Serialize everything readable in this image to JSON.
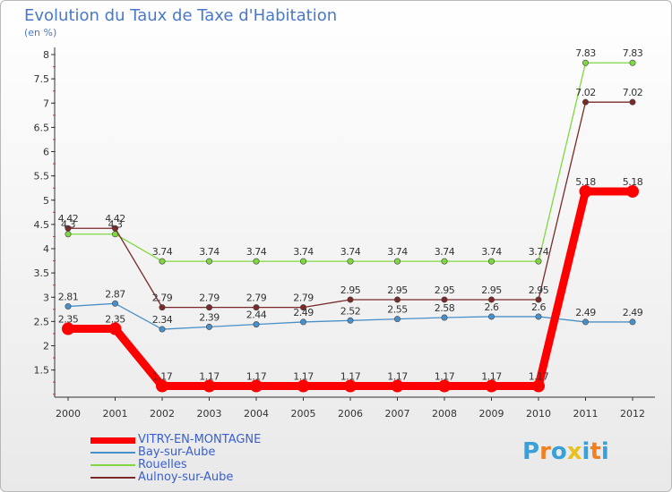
{
  "title": "Evolution du Taux de Taxe d'Habitation",
  "subtitle": "(en %)",
  "logo": {
    "text": "Proxiti",
    "colors": [
      "#3aa0d8",
      "#f08020",
      "#3aa0d8",
      "#e8c020",
      "#3aa0d8",
      "#f08020",
      "#3aa0d8"
    ]
  },
  "chart_data": {
    "type": "line",
    "title": "Evolution du Taux de Taxe d'Habitation",
    "ylabel": "(en %)",
    "xlabel": "",
    "x": [
      "2000",
      "2001",
      "2002",
      "2003",
      "2004",
      "2005",
      "2006",
      "2007",
      "2008",
      "2009",
      "2010",
      "2011",
      "2012"
    ],
    "ylim": [
      1,
      8
    ],
    "yticks": [
      "1.5",
      "2",
      "2.5",
      "3",
      "3.5",
      "4",
      "4.5",
      "5",
      "5.5",
      "6",
      "6.5",
      "7",
      "7.5",
      "8"
    ],
    "grid": false,
    "legend_position": "bottom-left",
    "series": [
      {
        "name": "VITRY-EN-MONTAGNE",
        "color": "#ff0000",
        "values": [
          2.35,
          2.35,
          1.17,
          1.17,
          1.17,
          1.17,
          1.17,
          1.17,
          1.17,
          1.17,
          1.17,
          5.18,
          5.18
        ],
        "labels": [
          "2.35",
          "2.35",
          "1.17",
          "1.17",
          "1.17",
          "1.17",
          "1.17",
          "1.17",
          "1.17",
          "1.17",
          "1.17",
          "5.18",
          "5.18"
        ]
      },
      {
        "name": "Bay-sur-Aube",
        "color": "#4a90c8",
        "values": [
          2.81,
          2.87,
          2.34,
          2.39,
          2.44,
          2.49,
          2.52,
          2.55,
          2.58,
          2.6,
          2.6,
          2.49,
          2.49
        ],
        "labels": [
          "2.81",
          "2.87",
          "2.34",
          "2.39",
          "2.44",
          "2.49",
          "2.52",
          "2.55",
          "2.58",
          "2.6",
          "2.6",
          "2.49",
          "2.49"
        ]
      },
      {
        "name": "Rouelles",
        "color": "#80d840",
        "values": [
          4.3,
          4.3,
          3.74,
          3.74,
          3.74,
          3.74,
          3.74,
          3.74,
          3.74,
          3.74,
          3.74,
          7.83,
          7.83
        ],
        "labels": [
          "4.3",
          "4.3",
          "3.74",
          "3.74",
          "3.74",
          "3.74",
          "3.74",
          "3.74",
          "3.74",
          "3.74",
          "3.74",
          "7.83",
          "7.83"
        ]
      },
      {
        "name": "Aulnoy-sur-Aube",
        "color": "#7a2a2a",
        "values": [
          4.42,
          4.42,
          2.79,
          2.79,
          2.79,
          2.79,
          2.95,
          2.95,
          2.95,
          2.95,
          2.95,
          7.02,
          7.02
        ],
        "labels": [
          "4.42",
          "4.42",
          "2.79",
          "2.79",
          "2.79",
          "2.79",
          "2.95",
          "2.95",
          "2.95",
          "2.95",
          "2.95",
          "7.02",
          "7.02"
        ]
      }
    ]
  }
}
